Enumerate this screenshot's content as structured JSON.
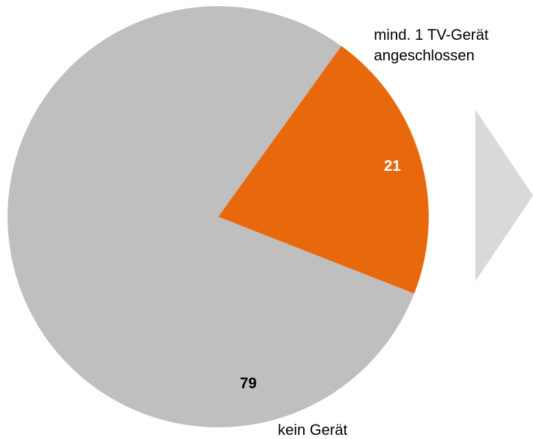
{
  "chart_data": {
    "type": "pie",
    "categories": [
      "mind. 1 TV-Gerät angeschlossen",
      "kein Gerät"
    ],
    "values": [
      21,
      79
    ],
    "colors": [
      "#e8690c",
      "#bfbfbf"
    ]
  }
}
